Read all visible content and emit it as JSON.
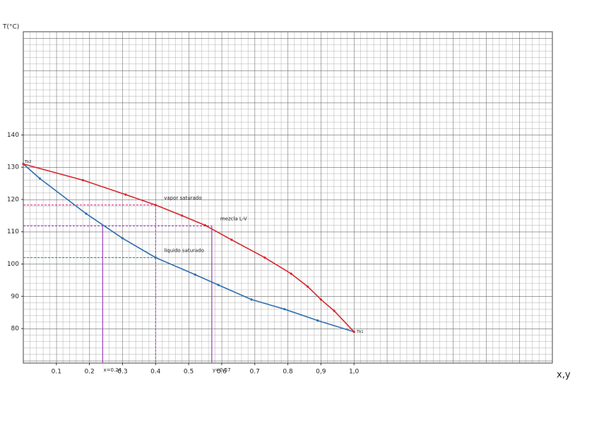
{
  "chart_data": {
    "type": "line",
    "y_label": "T(°C)",
    "x_label": "x,y",
    "xlim": [
      0,
      1.6
    ],
    "ylim": [
      69.3,
      172
    ],
    "xticks": [
      0.1,
      0.2,
      0.3,
      0.4,
      0.5,
      0.6,
      0.7,
      0.8,
      {
        "value": 0.9,
        "label": "0,9"
      },
      {
        "value": 1,
        "label": "1,0"
      }
    ],
    "yticks": [
      80,
      90,
      100,
      110,
      120,
      130,
      140
    ],
    "grid": true,
    "series": [
      {
        "name": "líquido saturado",
        "color": "#2f6fb0",
        "x": [
          0,
          0.05,
          0.19,
          0.3,
          0.4,
          0.52,
          0.59,
          0.69,
          0.79,
          0.89,
          1
        ],
        "values": [
          131,
          126.5,
          115.6,
          108,
          102,
          96.7,
          93.5,
          89,
          86,
          82.5,
          79
        ]
      },
      {
        "name": "vapor saturado",
        "color": "#d8262a",
        "x": [
          0,
          0.18,
          0.31,
          0.4,
          0.48,
          0.55,
          0.63,
          0.73,
          0.81,
          0.86,
          0.9,
          0.94,
          1
        ],
        "values": [
          131,
          126,
          121.5,
          118.3,
          115,
          112,
          107.5,
          102,
          97,
          93,
          89,
          85.5,
          79
        ]
      }
    ],
    "guides": [
      {
        "name": "vapor saturado",
        "x": 0.4,
        "y": 118.3,
        "color": "#e0208c"
      },
      {
        "name": "mezcla L-V",
        "x": 0.57,
        "y": 111.8,
        "color": "#9b3fbf"
      },
      {
        "name": "líquido saturado",
        "x": 0.4,
        "y": 102,
        "color": "#1a8a6e"
      }
    ],
    "x_marks": [
      {
        "value": 0.24,
        "label": "x=0.24"
      },
      {
        "value": 0.57,
        "label": "y=0.57"
      }
    ],
    "end_labels": [
      "Tb2",
      "Tb1"
    ]
  }
}
